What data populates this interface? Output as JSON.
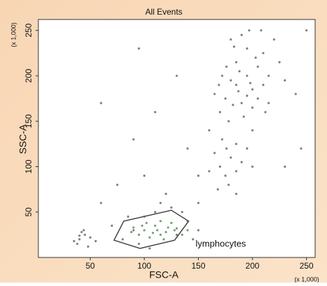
{
  "chart_data": {
    "type": "scatter",
    "title": "All Events",
    "x_label": "FSC-A",
    "y_label": "SSC-A",
    "x_unit": "(x 1,000)",
    "y_unit": "(x 1,000)",
    "xlim": [
      2,
      258
    ],
    "ylim": [
      0,
      262
    ],
    "xticks": [
      50,
      100,
      150,
      200,
      250
    ],
    "yticks": [
      50,
      100,
      150,
      200,
      250
    ],
    "series": [
      {
        "color": "#555555",
        "x": [
          185,
          195,
          175,
          205,
          190,
          180,
          200,
          210,
          170,
          195,
          215,
          185,
          178,
          200,
          220,
          190,
          165,
          205,
          188,
          198,
          182,
          210,
          172,
          225,
          192,
          160,
          208,
          183,
          215,
          176,
          195,
          203,
          187,
          169,
          230,
          200,
          185,
          212,
          197,
          180,
          170,
          180,
          175,
          185,
          165,
          190,
          178,
          160,
          195,
          172,
          168,
          185,
          150,
          200,
          176,
          90,
          100,
          130,
          140,
          80,
          110,
          150,
          95,
          125,
          70,
          145,
          115,
          85,
          135,
          105,
          40,
          45,
          38,
          50,
          42,
          35,
          48,
          44,
          55,
          40,
          60,
          75,
          100,
          120,
          140,
          90,
          110,
          130,
          60,
          150,
          240,
          245,
          250,
          230,
          95
        ],
        "y": [
          190,
          200,
          175,
          210,
          170,
          195,
          185,
          225,
          160,
          230,
          200,
          215,
          150,
          165,
          240,
          245,
          180,
          175,
          205,
          192,
          168,
          190,
          200,
          215,
          155,
          140,
          250,
          232,
          170,
          210,
          178,
          220,
          183,
          190,
          195,
          140,
          125,
          160,
          250,
          240,
          100,
          110,
          90,
          95,
          115,
          105,
          80,
          95,
          120,
          130,
          75,
          70,
          90,
          100,
          120,
          30,
          45,
          25,
          40,
          20,
          50,
          30,
          15,
          55,
          35,
          20,
          60,
          45,
          50,
          10,
          20,
          25,
          15,
          22,
          28,
          18,
          12,
          30,
          18,
          24,
          60,
          80,
          90,
          70,
          120,
          130,
          160,
          200,
          170,
          60,
          180,
          120,
          250,
          100,
          230
        ]
      },
      {
        "color": "#3a8a3a",
        "x": [
          100,
          110,
          120,
          95,
          130,
          115,
          105,
          125,
          90,
          135,
          112,
          102,
          118,
          128,
          98,
          108,
          122,
          140,
          88,
          115
        ],
        "y": [
          30,
          35,
          28,
          25,
          32,
          40,
          22,
          38,
          33,
          25,
          30,
          38,
          20,
          30,
          35,
          27,
          33,
          30,
          28,
          25
        ]
      }
    ],
    "gate": {
      "label": "lymphocytes",
      "x": [
        72,
        81,
        125,
        141,
        128,
        96
      ],
      "y": [
        19,
        40,
        52,
        40,
        19,
        10
      ]
    }
  }
}
